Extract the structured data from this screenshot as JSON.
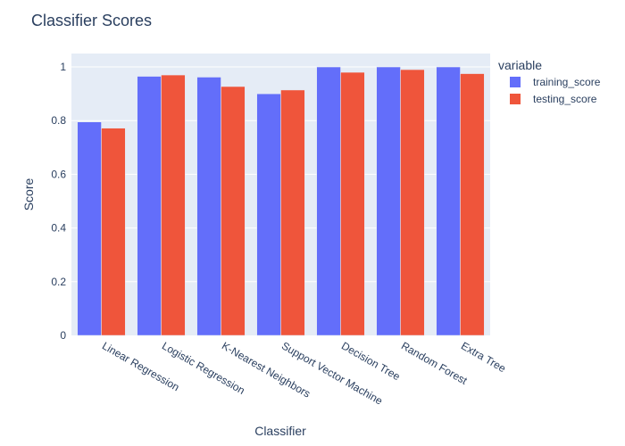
{
  "chart_data": {
    "type": "bar",
    "title": "Classifier Scores",
    "xlabel": "Classifier",
    "ylabel": "Score",
    "categories": [
      "Linear Regression",
      "Logistic Regression",
      "K-Nearest Neighbors",
      "Support Vector Machine",
      "Decision Tree",
      "Random Forest",
      "Extra Tree"
    ],
    "series": [
      {
        "name": "training_score",
        "color": "#636efa",
        "values": [
          0.795,
          0.965,
          0.962,
          0.9,
          1.0,
          1.0,
          1.0
        ]
      },
      {
        "name": "testing_score",
        "color": "#ef553b",
        "values": [
          0.772,
          0.97,
          0.927,
          0.914,
          0.98,
          0.99,
          0.975
        ]
      }
    ],
    "ylim": [
      0,
      1.05
    ],
    "yticks": [
      0,
      0.2,
      0.4,
      0.6,
      0.8,
      1
    ],
    "ytick_labels": [
      "0",
      "0.2",
      "0.4",
      "0.6",
      "0.8",
      "1"
    ],
    "legend": {
      "title": "variable",
      "placement": "top-right"
    },
    "grid": true,
    "background": "#e5ecf6"
  }
}
